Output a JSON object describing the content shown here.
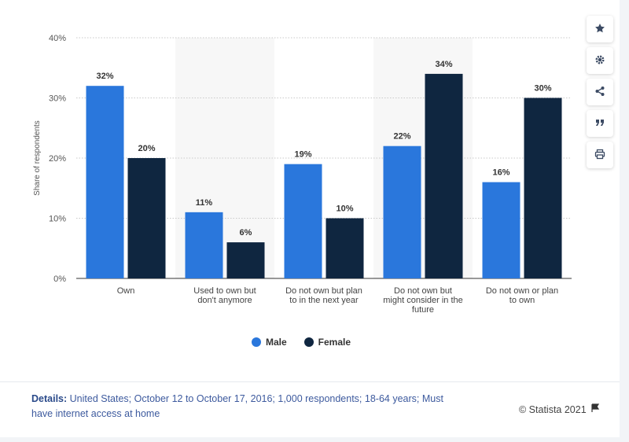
{
  "chart_data": {
    "type": "bar",
    "categories": [
      "Own",
      "Used to own but don't anymore",
      "Do not own but plan to in the next year",
      "Do not own but might consider in the future",
      "Do not own or plan to own"
    ],
    "category_lines": [
      [
        "Own"
      ],
      [
        "Used to own but",
        "don't anymore"
      ],
      [
        "Do not own but plan",
        "to in the next year"
      ],
      [
        "Do not own but",
        "might consider in the",
        "future"
      ],
      [
        "Do not own or plan",
        "to own"
      ]
    ],
    "series": [
      {
        "name": "Male",
        "values": [
          32,
          11,
          19,
          22,
          16
        ],
        "color": "#2a77dc"
      },
      {
        "name": "Female",
        "values": [
          20,
          6,
          10,
          34,
          30
        ],
        "color": "#0f2640"
      }
    ],
    "ylabel": "Share of respondents",
    "ylim": [
      0,
      40
    ],
    "yticks": [
      0,
      10,
      20,
      30,
      40
    ],
    "ytick_labels": [
      "0%",
      "10%",
      "20%",
      "30%",
      "40%"
    ],
    "value_suffix": "%",
    "grid": true,
    "legend_position": "bottom"
  },
  "legend": {
    "male": "Male",
    "female": "Female"
  },
  "sidebar": {
    "icons": [
      "star-icon",
      "gear-icon",
      "share-icon",
      "quote-icon",
      "print-icon"
    ]
  },
  "footer": {
    "details_label": "Details:",
    "details_text": "United States; October 12 to October 17, 2016; 1,000 respondents; 18-64 years; Must have internet access at home",
    "copyright": "© Statista 2021"
  }
}
